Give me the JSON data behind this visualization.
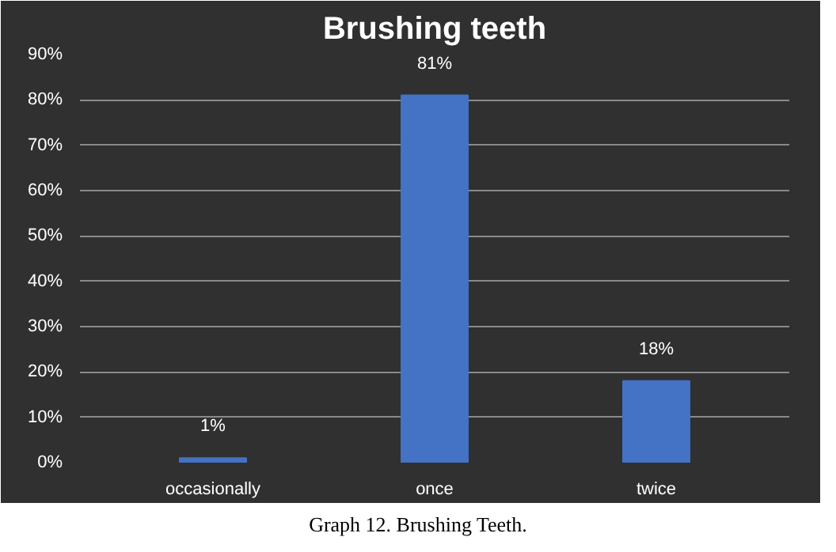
{
  "chart_data": {
    "type": "bar",
    "title": "Brushing teeth",
    "categories": [
      "occasionally",
      "once",
      "twice"
    ],
    "values": [
      1,
      81,
      18
    ],
    "color": "#4472c4",
    "value_labels": [
      "1%",
      "81%",
      "18%"
    ],
    "ylim": [
      0,
      90
    ],
    "yticks": [
      {
        "value": 0,
        "label": "0%"
      },
      {
        "value": 10,
        "label": "10%"
      },
      {
        "value": 20,
        "label": "20%"
      },
      {
        "value": 30,
        "label": "30%"
      },
      {
        "value": 40,
        "label": "40%"
      },
      {
        "value": 50,
        "label": "50%"
      },
      {
        "value": 60,
        "label": "60%"
      },
      {
        "value": 70,
        "label": "70%"
      },
      {
        "value": 80,
        "label": "80%"
      },
      {
        "value": 90,
        "label": "90%"
      }
    ],
    "grid": "y",
    "annotations": [
      "Graph 12. Brushing Teeth."
    ]
  }
}
